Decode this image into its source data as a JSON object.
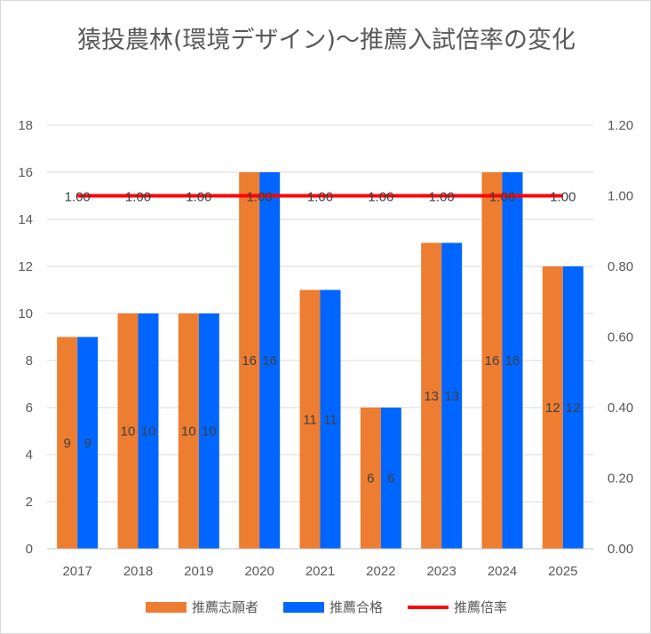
{
  "chart_data": {
    "type": "bar",
    "title": "猿投農林(環境デザイン)～推薦入試倍率の変化",
    "categories": [
      "2017",
      "2018",
      "2019",
      "2020",
      "2021",
      "2022",
      "2023",
      "2024",
      "2025"
    ],
    "series": [
      {
        "name": "推薦志願者",
        "axis": "left",
        "type": "bar",
        "color": "#ED7D31",
        "values": [
          9,
          10,
          10,
          16,
          11,
          6,
          13,
          16,
          12
        ]
      },
      {
        "name": "推薦合格",
        "axis": "left",
        "type": "bar",
        "color": "#0066FF",
        "values": [
          9,
          10,
          10,
          16,
          11,
          6,
          13,
          16,
          12
        ]
      },
      {
        "name": "推薦倍率",
        "axis": "right",
        "type": "line",
        "color": "#FF0000",
        "values": [
          1.0,
          1.0,
          1.0,
          1.0,
          1.0,
          1.0,
          1.0,
          1.0,
          1.0
        ]
      }
    ],
    "ylim": [
      0,
      18
    ],
    "yticks": [
      "0",
      "2",
      "4",
      "6",
      "8",
      "10",
      "12",
      "14",
      "16",
      "18"
    ],
    "y2lim": [
      0,
      1.2
    ],
    "y2ticks": [
      "0.00",
      "0.20",
      "0.40",
      "0.60",
      "0.80",
      "1.00",
      "1.20"
    ],
    "grid": true,
    "legend": "bottom"
  }
}
